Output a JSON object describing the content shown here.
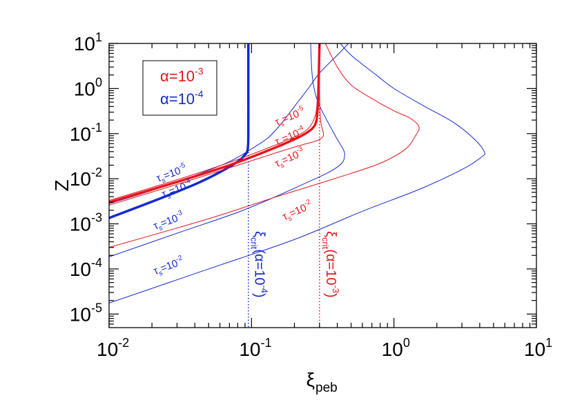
{
  "chart_data": {
    "type": "line",
    "xscale": "log",
    "yscale": "log",
    "xlim": [
      0.01,
      10
    ],
    "ylim": [
      5e-06,
      10
    ],
    "xlabel": "ξ",
    "xlabel_sub": "peb",
    "ylabel": "Z",
    "x_ticks": [
      {
        "value": 0.01,
        "base": "10",
        "exp": "-2"
      },
      {
        "value": 0.1,
        "base": "10",
        "exp": "-1"
      },
      {
        "value": 1,
        "base": "10",
        "exp": "0"
      },
      {
        "value": 10,
        "base": "10",
        "exp": "1"
      }
    ],
    "y_ticks": [
      {
        "value": 1e-05,
        "base": "10",
        "exp": "-5"
      },
      {
        "value": 0.0001,
        "base": "10",
        "exp": "-4"
      },
      {
        "value": 0.001,
        "base": "10",
        "exp": "-3"
      },
      {
        "value": 0.01,
        "base": "10",
        "exp": "-2"
      },
      {
        "value": 0.1,
        "base": "10",
        "exp": "-1"
      },
      {
        "value": 1,
        "base": "10",
        "exp": "0"
      },
      {
        "value": 10,
        "base": "10",
        "exp": "1"
      }
    ],
    "colors": {
      "alpha_1e-3": "#e8141c",
      "alpha_1e-4": "#1428d2"
    },
    "legend": {
      "position": "top-left",
      "entries": [
        {
          "text": "α=10",
          "exp": "-3",
          "color": "#e8141c"
        },
        {
          "text": "α=10",
          "exp": "-4",
          "color": "#1428d2"
        }
      ]
    },
    "xi_crit": [
      {
        "alpha": "1e-3",
        "x": 0.3,
        "color": "#e8141c",
        "label": "ξ",
        "sub": "crit",
        "mid": "(α=10",
        "exp": "-3",
        "end": ")"
      },
      {
        "alpha": "1e-4",
        "x": 0.095,
        "color": "#1428d2",
        "label": "ξ",
        "sub": "crit",
        "mid": "(α=10",
        "exp": "-4",
        "end": ")"
      }
    ],
    "series": [
      {
        "alpha": "1e-4",
        "tau_exp": "-5",
        "color": "#1428d2",
        "width": 1,
        "points": [
          [
            0.01,
            0.0028
          ],
          [
            0.02,
            0.0055
          ],
          [
            0.04,
            0.0118
          ],
          [
            0.07,
            0.024
          ],
          [
            0.1,
            0.046
          ],
          [
            0.13,
            0.08
          ],
          [
            0.16,
            0.16
          ],
          [
            0.2,
            0.4
          ],
          [
            0.25,
            1.0
          ],
          [
            0.3,
            2.2
          ],
          [
            0.4,
            5.5
          ],
          [
            0.48,
            10
          ]
        ]
      },
      {
        "alpha": "1e-4",
        "tau_exp": "-4",
        "color": "#1428d2",
        "width": 3.5,
        "points": [
          [
            0.01,
            0.00135
          ],
          [
            0.02,
            0.0031
          ],
          [
            0.04,
            0.0075
          ],
          [
            0.06,
            0.014
          ],
          [
            0.08,
            0.024
          ],
          [
            0.09,
            0.034
          ],
          [
            0.094,
            0.045
          ],
          [
            0.095,
            0.1
          ],
          [
            0.095,
            1.0
          ],
          [
            0.095,
            10
          ]
        ]
      },
      {
        "alpha": "1e-4",
        "tau_exp": "-3",
        "color": "#1428d2",
        "width": 1,
        "points": [
          [
            0.01,
            0.000185
          ],
          [
            0.03,
            0.00062
          ],
          [
            0.08,
            0.0018
          ],
          [
            0.15,
            0.0041
          ],
          [
            0.25,
            0.0085
          ],
          [
            0.35,
            0.014
          ],
          [
            0.43,
            0.022
          ],
          [
            0.45,
            0.033
          ],
          [
            0.44,
            0.045
          ],
          [
            0.38,
            0.1
          ],
          [
            0.3,
            0.42
          ],
          [
            0.275,
            1.0
          ],
          [
            0.265,
            2.5
          ],
          [
            0.26,
            10
          ]
        ]
      },
      {
        "alpha": "1e-4",
        "tau_exp": "-2",
        "color": "#1428d2",
        "width": 1,
        "points": [
          [
            0.01,
            1.75e-05
          ],
          [
            0.05,
            0.0001
          ],
          [
            0.2,
            0.00045
          ],
          [
            0.6,
            0.0019
          ],
          [
            1.5,
            0.0058
          ],
          [
            3.0,
            0.016
          ],
          [
            4.1,
            0.03
          ],
          [
            4.3,
            0.04
          ],
          [
            3.6,
            0.08
          ],
          [
            2.6,
            0.18
          ],
          [
            1.6,
            0.42
          ],
          [
            1.0,
            1.0
          ],
          [
            0.75,
            2.0
          ],
          [
            0.5,
            5.5
          ],
          [
            0.42,
            10
          ]
        ]
      },
      {
        "alpha": "1e-3",
        "tau_exp": "-5",
        "color": "#e8141c",
        "width": 1,
        "points": [
          [
            0.01,
            0.0033
          ],
          [
            0.03,
            0.0095
          ],
          [
            0.07,
            0.023
          ],
          [
            0.13,
            0.048
          ],
          [
            0.2,
            0.085
          ],
          [
            0.25,
            0.13
          ],
          [
            0.28,
            0.25
          ],
          [
            0.29,
            0.6
          ],
          [
            0.295,
            2.0
          ],
          [
            0.3,
            10
          ]
        ]
      },
      {
        "alpha": "1e-3",
        "tau_exp": "-4",
        "color": "#e8141c",
        "width": 3.5,
        "points": [
          [
            0.01,
            0.003
          ],
          [
            0.03,
            0.0085
          ],
          [
            0.07,
            0.02
          ],
          [
            0.13,
            0.042
          ],
          [
            0.2,
            0.075
          ],
          [
            0.25,
            0.11
          ],
          [
            0.28,
            0.16
          ],
          [
            0.29,
            0.3
          ],
          [
            0.295,
            1.0
          ],
          [
            0.3,
            10
          ]
        ]
      },
      {
        "alpha": "1e-3",
        "tau_exp": "-3",
        "color": "#e8141c",
        "width": 1,
        "points": [
          [
            0.01,
            0.0026
          ],
          [
            0.03,
            0.0075
          ],
          [
            0.08,
            0.02
          ],
          [
            0.15,
            0.038
          ],
          [
            0.22,
            0.055
          ],
          [
            0.28,
            0.068
          ],
          [
            0.31,
            0.08
          ],
          [
            0.32,
            0.1
          ],
          [
            0.305,
            0.2
          ],
          [
            0.3,
            1.0
          ],
          [
            0.3,
            10
          ]
        ]
      },
      {
        "alpha": "1e-3",
        "tau_exp": "-2",
        "color": "#e8141c",
        "width": 1,
        "points": [
          [
            0.01,
            0.0003
          ],
          [
            0.05,
            0.0013
          ],
          [
            0.15,
            0.004
          ],
          [
            0.4,
            0.0105
          ],
          [
            0.8,
            0.022
          ],
          [
            1.2,
            0.045
          ],
          [
            1.4,
            0.085
          ],
          [
            1.5,
            0.14
          ],
          [
            1.3,
            0.22
          ],
          [
            1.0,
            0.32
          ],
          [
            0.7,
            0.6
          ],
          [
            0.5,
            1.2
          ],
          [
            0.4,
            3.0
          ],
          [
            0.33,
            10
          ]
        ]
      }
    ],
    "tau_labels": [
      {
        "text": "τ",
        "sub": "s",
        "mid": "=10",
        "exp": "-5",
        "x": 0.022,
        "y": 0.0085,
        "angle": -20,
        "color": "#1428d2"
      },
      {
        "text": "τ",
        "sub": "s",
        "mid": "=10",
        "exp": "-4",
        "x": 0.024,
        "y": 0.0038,
        "angle": -20,
        "color": "#1428d2"
      },
      {
        "text": "τ",
        "sub": "s",
        "mid": "=10",
        "exp": "-3",
        "x": 0.021,
        "y": 0.00075,
        "angle": -20,
        "color": "#1428d2"
      },
      {
        "text": "τ",
        "sub": "s",
        "mid": "=10",
        "exp": "-2",
        "x": 0.021,
        "y": 7.5e-05,
        "angle": -20,
        "color": "#1428d2"
      },
      {
        "text": "τ",
        "sub": "s",
        "mid": "=10",
        "exp": "-5",
        "x": 0.15,
        "y": 0.15,
        "angle": -22,
        "color": "#e8141c"
      },
      {
        "text": "τ",
        "sub": "s",
        "mid": "=10",
        "exp": "-4",
        "x": 0.15,
        "y": 0.055,
        "angle": -22,
        "color": "#e8141c"
      },
      {
        "text": "τ",
        "sub": "s",
        "mid": "=10",
        "exp": "-3",
        "x": 0.15,
        "y": 0.018,
        "angle": -24,
        "color": "#e8141c"
      },
      {
        "text": "τ",
        "sub": "s",
        "mid": "=10",
        "exp": "-2",
        "x": 0.17,
        "y": 0.0012,
        "angle": -24,
        "color": "#e8141c"
      }
    ]
  }
}
